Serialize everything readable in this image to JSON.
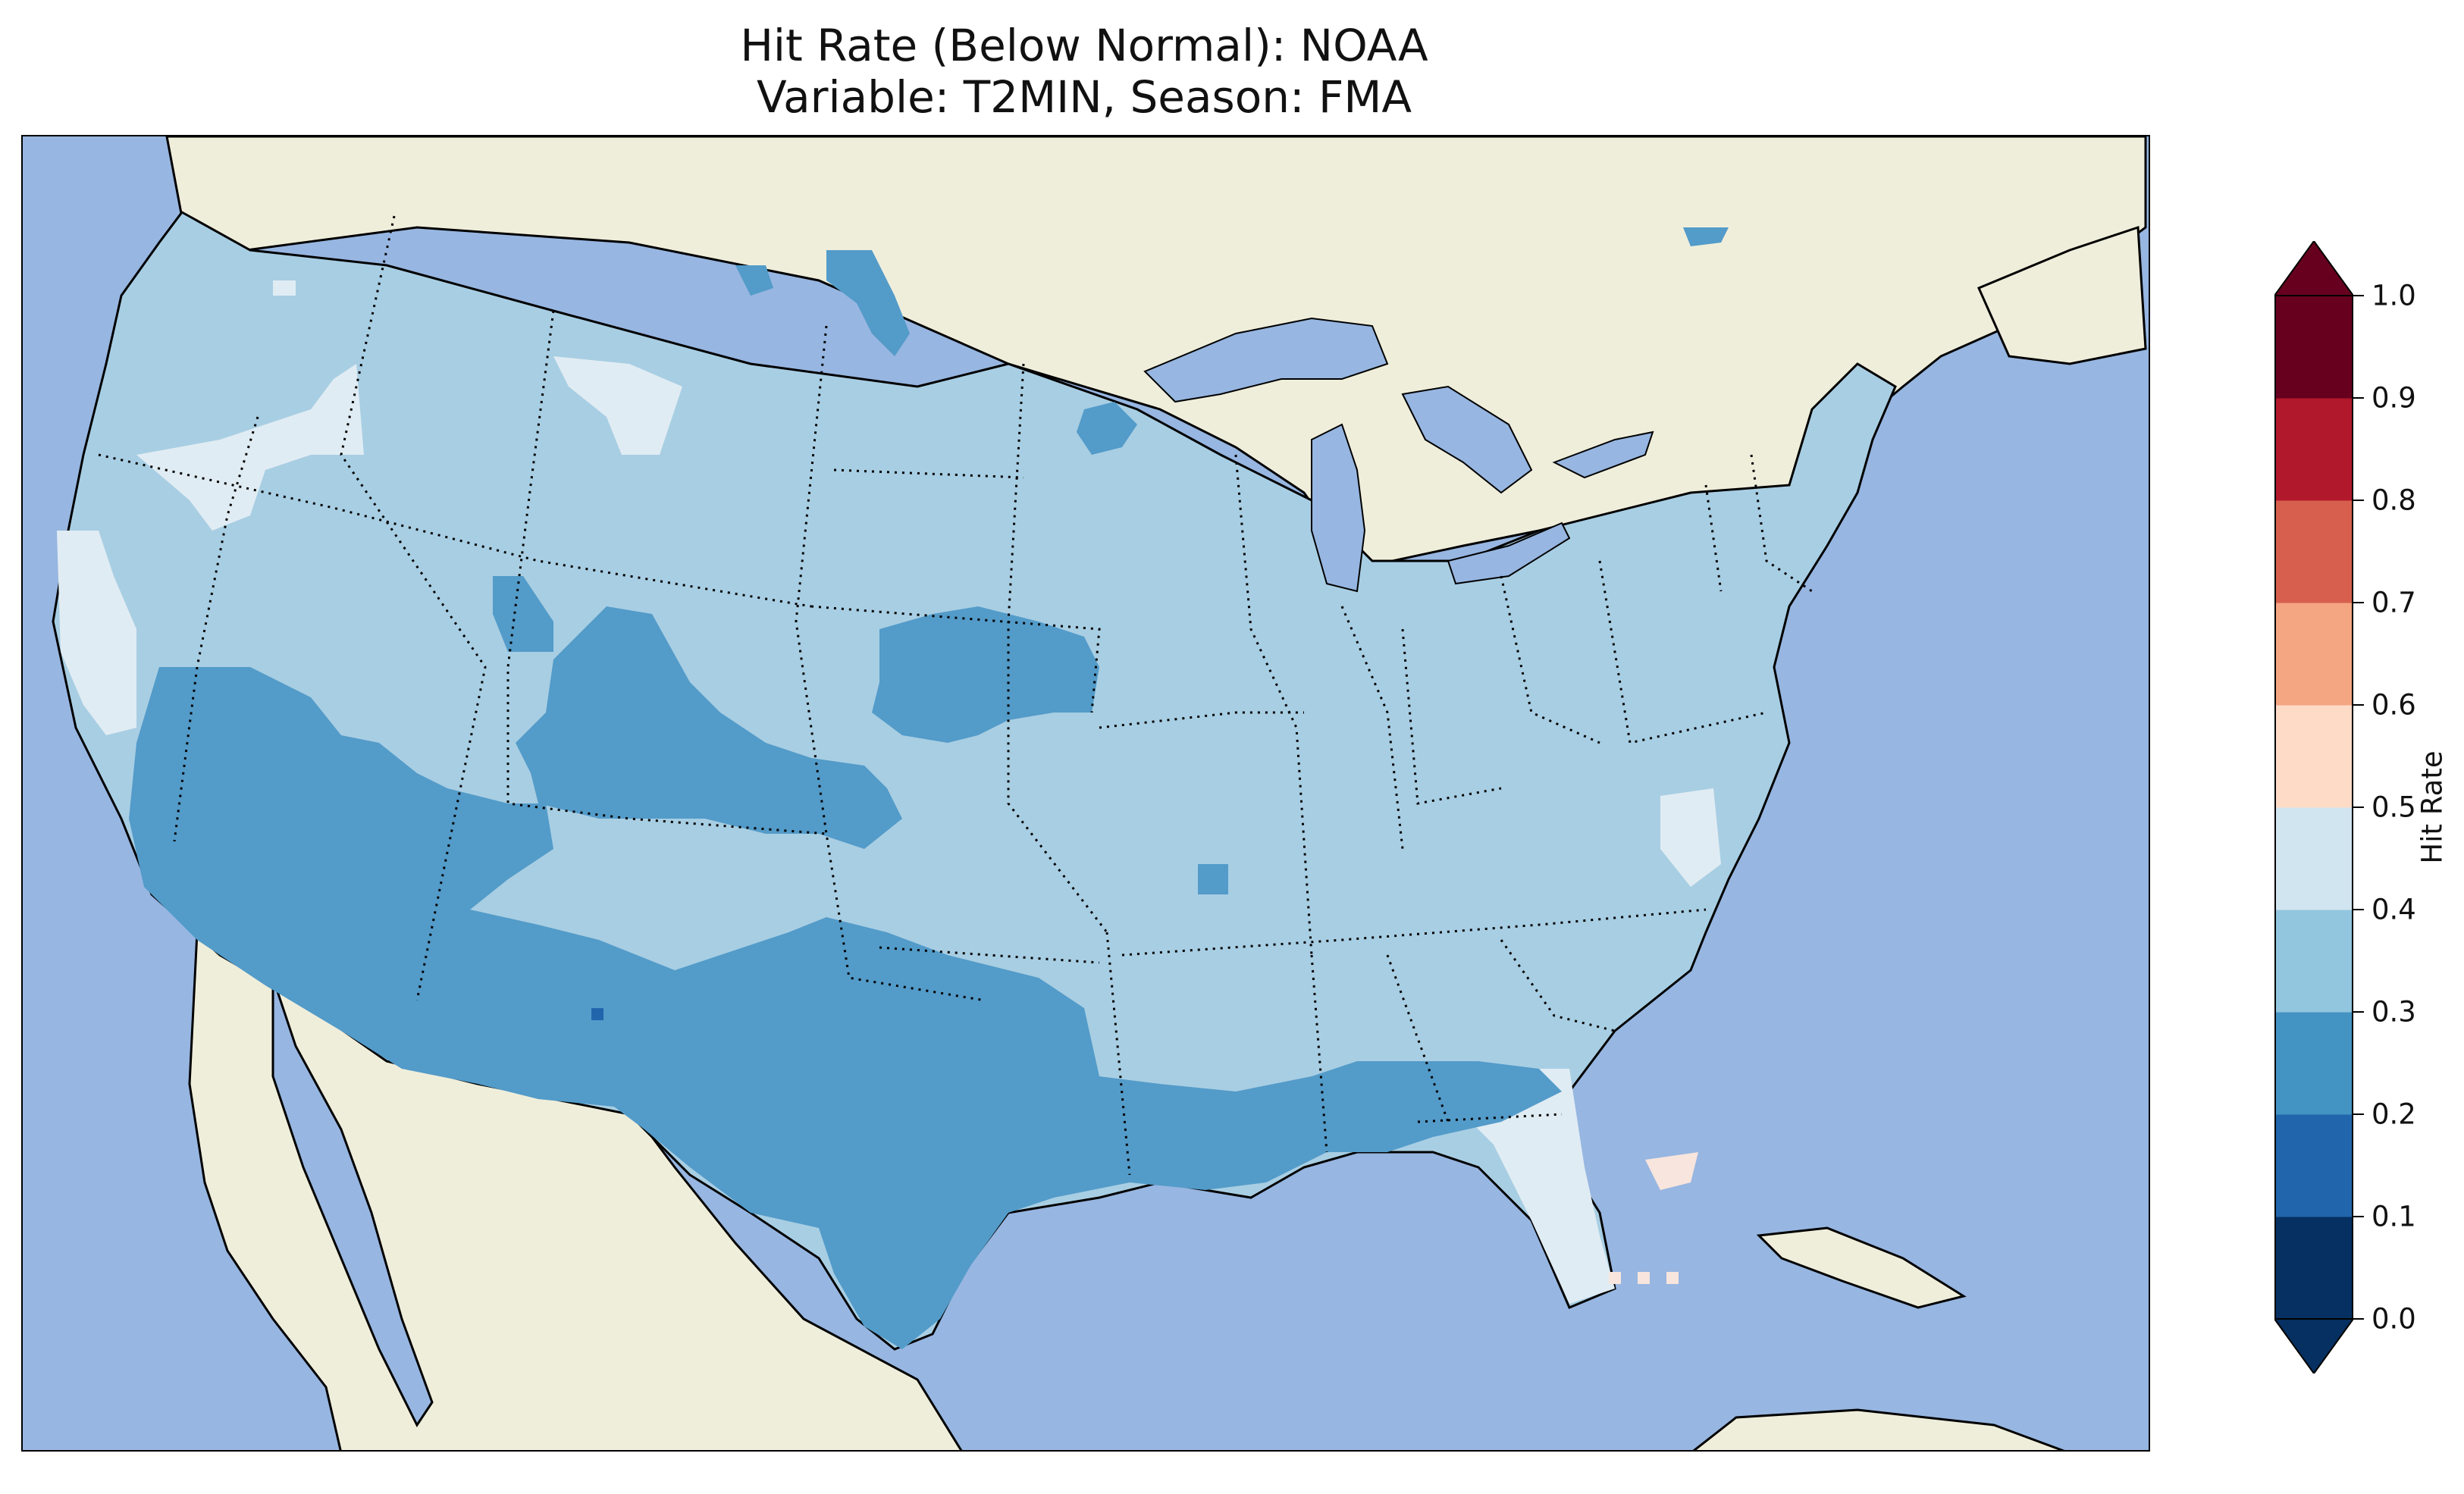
{
  "title": {
    "line1": "Hit Rate (Below Normal): NOAA",
    "line2": "Variable: T2MIN, Season: FMA"
  },
  "colors": {
    "ocean": "#97b6e1",
    "land": "#efeedb",
    "category_0.2_0.3": "#539bc9",
    "category_0.3_0.4": "#a8cee3",
    "category_0.4_0.5": "#e0ecf3",
    "category_0.5_0.6": "#f8e5dd"
  },
  "colorbar": {
    "label": "Hit Rate",
    "extend": "both",
    "ticks": [
      "0.0",
      "0.1",
      "0.2",
      "0.3",
      "0.4",
      "0.5",
      "0.6",
      "0.7",
      "0.8",
      "0.9",
      "1.0"
    ],
    "bins": [
      {
        "lo": 0.0,
        "hi": 0.1,
        "color": "#053061"
      },
      {
        "lo": 0.1,
        "hi": 0.2,
        "color": "#2166ac"
      },
      {
        "lo": 0.2,
        "hi": 0.3,
        "color": "#4393c3"
      },
      {
        "lo": 0.3,
        "hi": 0.4,
        "color": "#92c5de"
      },
      {
        "lo": 0.4,
        "hi": 0.5,
        "color": "#d1e5f0"
      },
      {
        "lo": 0.5,
        "hi": 0.6,
        "color": "#fddbc7"
      },
      {
        "lo": 0.6,
        "hi": 0.7,
        "color": "#f4a582"
      },
      {
        "lo": 0.7,
        "hi": 0.8,
        "color": "#d6604d"
      },
      {
        "lo": 0.8,
        "hi": 0.9,
        "color": "#b2182b"
      },
      {
        "lo": 0.9,
        "hi": 1.0,
        "color": "#67001f"
      }
    ],
    "under_color": "#053061",
    "over_color": "#67001f"
  }
}
